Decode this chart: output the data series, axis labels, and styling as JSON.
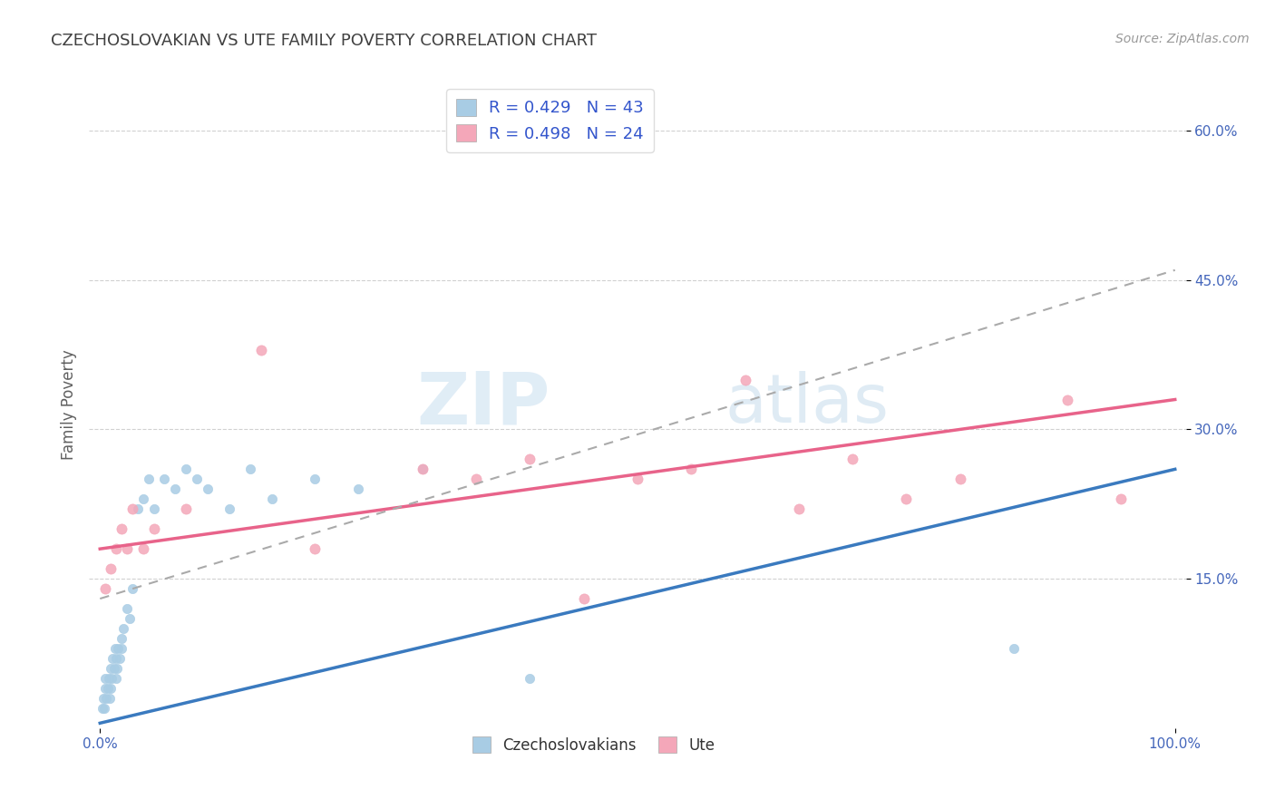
{
  "title": "CZECHOSLOVAKIAN VS UTE FAMILY POVERTY CORRELATION CHART",
  "source": "Source: ZipAtlas.com",
  "ylabel": "Family Poverty",
  "xlim": [
    -1,
    101
  ],
  "ylim": [
    0,
    65
  ],
  "yticks": [
    15,
    30,
    45,
    60
  ],
  "ytick_labels": [
    "15.0%",
    "30.0%",
    "45.0%",
    "60.0%"
  ],
  "xticks": [
    0,
    100
  ],
  "xtick_labels": [
    "0.0%",
    "100.0%"
  ],
  "legend_r1": "R = 0.429",
  "legend_n1": "N = 43",
  "legend_r2": "R = 0.498",
  "legend_n2": "N = 24",
  "blue_scatter_color": "#a8cce4",
  "pink_scatter_color": "#f4a7b9",
  "blue_line_color": "#3a7abf",
  "pink_line_color": "#e8638a",
  "dashed_line_color": "#aaaaaa",
  "title_color": "#404040",
  "axis_label_color": "#606060",
  "tick_color": "#4466bb",
  "legend_text_color": "#3355cc",
  "background_color": "#ffffff",
  "grid_color": "#cccccc",
  "watermark_zip": "ZIP",
  "watermark_atlas": "atlas",
  "blue_x": [
    0.2,
    0.3,
    0.4,
    0.5,
    0.5,
    0.6,
    0.7,
    0.8,
    0.9,
    1.0,
    1.0,
    1.1,
    1.2,
    1.3,
    1.4,
    1.5,
    1.5,
    1.6,
    1.7,
    1.8,
    2.0,
    2.0,
    2.2,
    2.5,
    2.8,
    3.0,
    3.5,
    4.0,
    4.5,
    5.0,
    6.0,
    7.0,
    8.0,
    9.0,
    10.0,
    12.0,
    14.0,
    16.0,
    20.0,
    24.0,
    30.0,
    40.0,
    85.0
  ],
  "blue_y": [
    2,
    3,
    2,
    4,
    5,
    3,
    4,
    5,
    3,
    6,
    4,
    5,
    7,
    6,
    8,
    7,
    5,
    6,
    8,
    7,
    9,
    8,
    10,
    12,
    11,
    14,
    22,
    23,
    25,
    22,
    25,
    24,
    26,
    25,
    24,
    22,
    26,
    23,
    25,
    24,
    26,
    5,
    8
  ],
  "pink_x": [
    0.5,
    1.0,
    1.5,
    2.0,
    2.5,
    3.0,
    4.0,
    5.0,
    8.0,
    15.0,
    20.0,
    30.0,
    35.0,
    40.0,
    45.0,
    50.0,
    55.0,
    60.0,
    65.0,
    70.0,
    75.0,
    80.0,
    90.0,
    95.0
  ],
  "pink_y": [
    14,
    16,
    18,
    20,
    18,
    22,
    18,
    20,
    22,
    38,
    18,
    26,
    25,
    27,
    13,
    25,
    26,
    35,
    22,
    27,
    23,
    25,
    33,
    23
  ],
  "blue_trend_start_y": 0.5,
  "blue_trend_end_y": 26.0,
  "pink_trend_start_y": 18.0,
  "pink_trend_end_y": 33.0,
  "dash_trend_start_y": 13.0,
  "dash_trend_end_y": 46.0
}
